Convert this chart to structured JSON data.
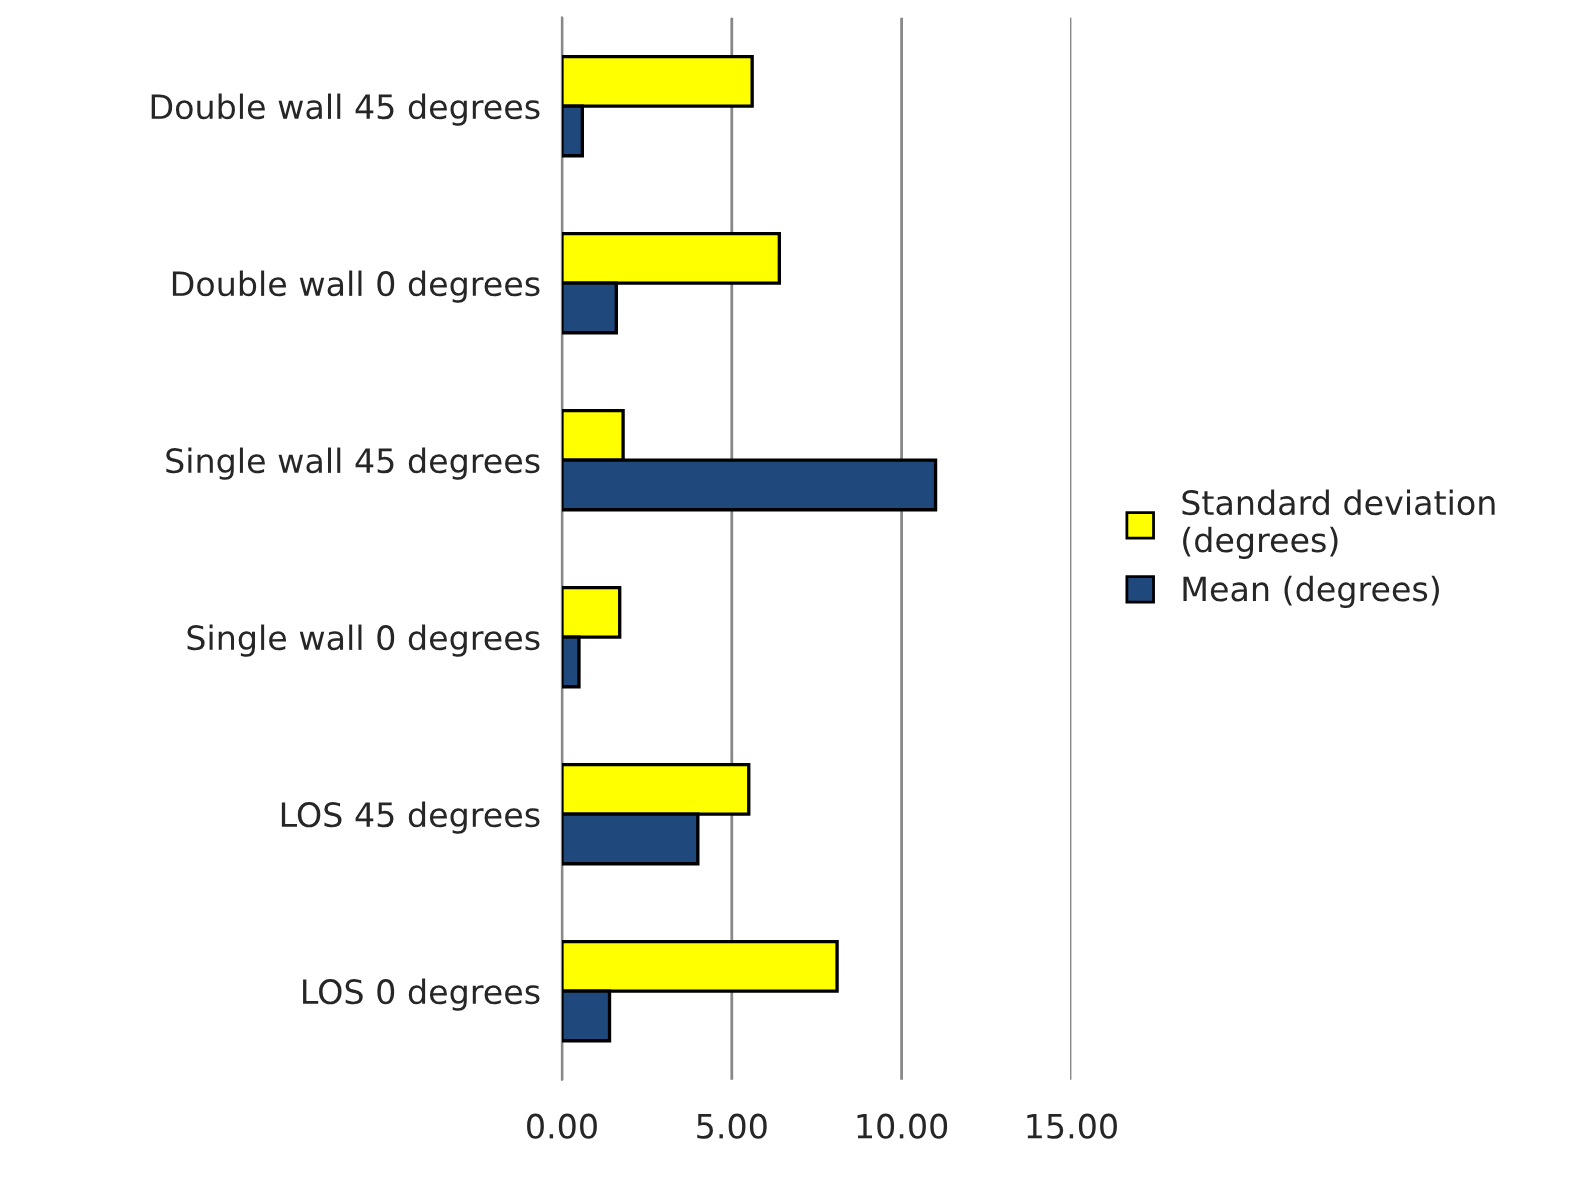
{
  "chart_data": {
    "type": "bar",
    "orientation": "horizontal",
    "categories": [
      "Double wall 45 degrees",
      "Double wall 0 degrees",
      "Single wall 45 degrees",
      "Single wall 0 degrees",
      "LOS 45 degrees",
      "LOS 0 degrees"
    ],
    "series": [
      {
        "name": "Standard deviation (degrees)",
        "color": "#ffff00",
        "values": [
          5.6,
          6.4,
          1.8,
          1.7,
          5.5,
          8.1
        ]
      },
      {
        "name": "Mean (degrees)",
        "color": "#1f497d",
        "values": [
          0.6,
          1.6,
          11.0,
          0.5,
          4.0,
          1.4
        ]
      }
    ],
    "xlim": [
      0,
      15
    ],
    "xticks": [
      {
        "value": 0,
        "label": "0.00"
      },
      {
        "value": 5,
        "label": "5.00"
      },
      {
        "value": 10,
        "label": "10.00"
      },
      {
        "value": 15,
        "label": "15.00"
      }
    ],
    "grid": "x",
    "legend": "right"
  }
}
